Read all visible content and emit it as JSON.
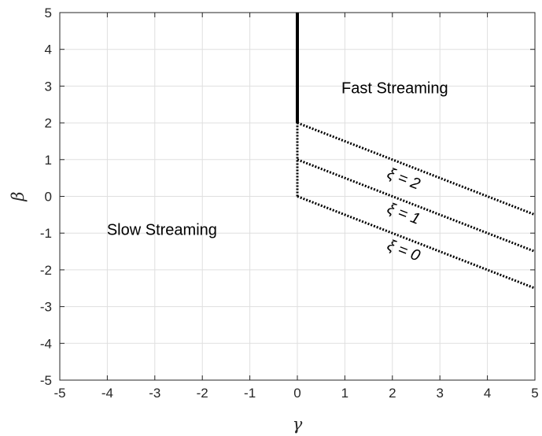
{
  "chart_data": {
    "type": "line",
    "title": "",
    "xlabel": "γ",
    "ylabel": "β",
    "xlim": [
      -5,
      5
    ],
    "ylim": [
      -5,
      5
    ],
    "xticks": [
      -5,
      -4,
      -3,
      -2,
      -1,
      0,
      1,
      2,
      3,
      4,
      5
    ],
    "yticks": [
      -5,
      -4,
      -3,
      -2,
      -1,
      0,
      1,
      2,
      3,
      4,
      5
    ],
    "grid": true,
    "series": [
      {
        "style": "solid",
        "color": "#000000",
        "x": [
          0,
          0
        ],
        "y": [
          2,
          5
        ]
      },
      {
        "style": "dotted",
        "color": "#000000",
        "x": [
          0,
          0
        ],
        "y": [
          0,
          2
        ]
      },
      {
        "style": "dotted",
        "color": "#000000",
        "x": [
          0,
          5
        ],
        "y": [
          2,
          -0.5
        ]
      },
      {
        "style": "dotted",
        "color": "#000000",
        "x": [
          0,
          5
        ],
        "y": [
          1,
          -1.5
        ]
      },
      {
        "style": "dotted",
        "color": "#000000",
        "x": [
          0,
          5
        ],
        "y": [
          0,
          -2.5
        ]
      }
    ],
    "annotations": [
      {
        "text": "Fast Streaming",
        "x": 2.05,
        "y": 2.8
      },
      {
        "text": "Slow Streaming",
        "x": -2.85,
        "y": -1.05
      },
      {
        "text": "ξ = 2",
        "x": 2.2,
        "y": 0.35
      },
      {
        "text": "ξ = 1",
        "x": 2.2,
        "y": -0.6
      },
      {
        "text": "ξ = 0",
        "x": 2.2,
        "y": -1.6
      }
    ]
  }
}
